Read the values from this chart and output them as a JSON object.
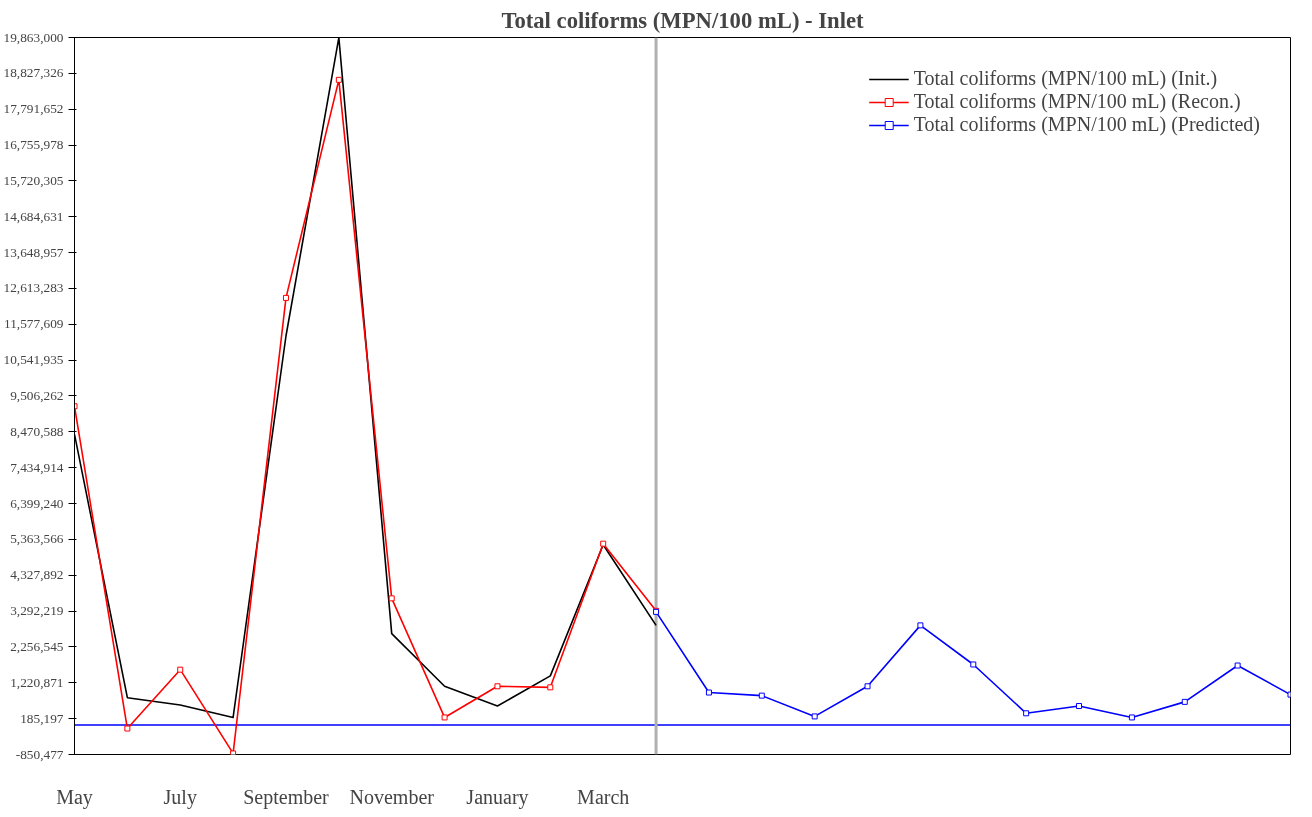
{
  "chart_data": {
    "type": "line",
    "title": "Total coliforms (MPN/100 mL) - Inlet",
    "categories": [
      "May",
      null,
      "July",
      null,
      "September",
      null,
      "November",
      null,
      "January",
      null,
      "March",
      null,
      null,
      null,
      null,
      null,
      null,
      null,
      null,
      null,
      null,
      null,
      null,
      null
    ],
    "ylim": [
      -850477,
      19863000
    ],
    "yticks": [
      {
        "value": -850477,
        "label": "-850,477"
      },
      {
        "value": 185197,
        "label": "185,197"
      },
      {
        "value": 1220871,
        "label": "1,220,871"
      },
      {
        "value": 2256545,
        "label": "2,256,545"
      },
      {
        "value": 3292219,
        "label": "3,292,219"
      },
      {
        "value": 4327892,
        "label": "4,327,892"
      },
      {
        "value": 5363566,
        "label": "5,363,566"
      },
      {
        "value": 6399240,
        "label": "6,399,240"
      },
      {
        "value": 7434914,
        "label": "7,434,914"
      },
      {
        "value": 8470588,
        "label": "8,470,588"
      },
      {
        "value": 9506262,
        "label": "9,506,262"
      },
      {
        "value": 10541935,
        "label": "10,541,935"
      },
      {
        "value": 11577609,
        "label": "11,577,609"
      },
      {
        "value": 12613283,
        "label": "12,613,283"
      },
      {
        "value": 13648957,
        "label": "13,648,957"
      },
      {
        "value": 14684631,
        "label": "14,684,631"
      },
      {
        "value": 15720305,
        "label": "15,720,305"
      },
      {
        "value": 16755978,
        "label": "16,755,978"
      },
      {
        "value": 17791652,
        "label": "17,791,652"
      },
      {
        "value": 18827326,
        "label": "18,827,326"
      },
      {
        "value": 19863000,
        "label": "19,863,000"
      }
    ],
    "legend": "top right",
    "line_style": "solid",
    "ref_lines": [
      {
        "axis": "y",
        "value": 0,
        "color": "#0000ff"
      }
    ],
    "series": [
      {
        "name": "Total coliforms (MPN/100 mL) (Init.)",
        "color": "#000000",
        "marker": "none",
        "values": [
          8400000,
          790000,
          580000,
          220000,
          11240000,
          19860000,
          2640000,
          1120000,
          550000,
          1420000,
          5210000,
          2880000,
          null,
          null,
          null,
          null,
          null,
          null,
          null,
          null,
          null,
          null,
          null,
          null
        ]
      },
      {
        "name": "Total coliforms (MPN/100 mL) (Recon.)",
        "color": "#ff0000",
        "marker": "square",
        "values": [
          9210000,
          -100000,
          1600000,
          -820000,
          12340000,
          18640000,
          3660000,
          220000,
          1120000,
          1090000,
          5240000,
          3300000,
          null,
          null,
          null,
          null,
          null,
          null,
          null,
          null,
          null,
          null,
          null,
          null
        ]
      },
      {
        "name": "Total coliforms (MPN/100 mL) (Predicted)",
        "color": "#0000ff",
        "marker": "square",
        "values": [
          null,
          null,
          null,
          null,
          null,
          null,
          null,
          null,
          null,
          null,
          null,
          3270000,
          940000,
          850000,
          250000,
          1120000,
          2880000,
          1750000,
          340000,
          550000,
          220000,
          670000,
          1720000,
          880000
        ]
      }
    ]
  }
}
